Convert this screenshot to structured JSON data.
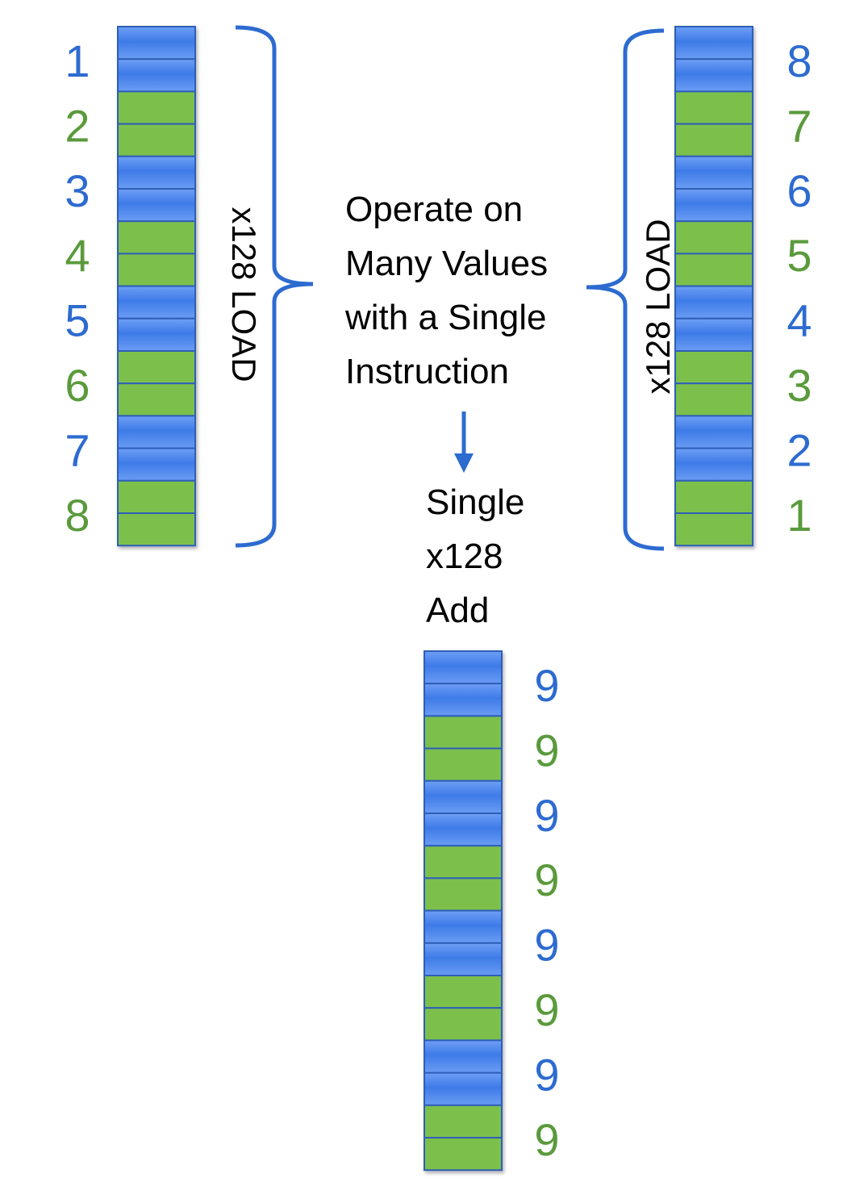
{
  "colors": {
    "blue_text": "#2d6bd0",
    "green_text": "#5a9a3c",
    "blue_cell": "#4d86ee",
    "green_cell": "#7cc04c",
    "brace": "#2d6bd0",
    "text": "#000000"
  },
  "left_column": {
    "labels": [
      "1",
      "2",
      "3",
      "4",
      "5",
      "6",
      "7",
      "8"
    ],
    "brace_label": "x128 LOAD"
  },
  "right_column": {
    "labels": [
      "8",
      "7",
      "6",
      "5",
      "4",
      "3",
      "2",
      "1"
    ],
    "brace_label": "x128 LOAD"
  },
  "result_column": {
    "labels": [
      "9",
      "9",
      "9",
      "9",
      "9",
      "9",
      "9",
      "9"
    ]
  },
  "caption": {
    "lines": [
      "Operate on",
      "Many Values",
      "with a Single",
      "Instruction"
    ]
  },
  "operation": {
    "lines": [
      "Single",
      "x128",
      "Add"
    ]
  }
}
